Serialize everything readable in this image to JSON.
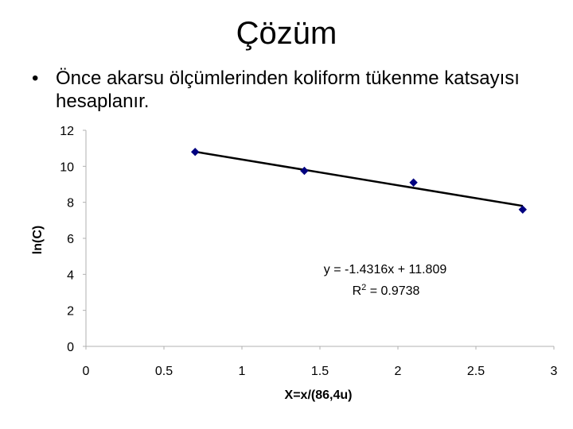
{
  "slide": {
    "title": "Çözüm",
    "bullet": "•",
    "text": "Önce akarsu ölçümlerinden koliform tükenme katsayısı hesaplanır."
  },
  "chart_data": {
    "type": "scatter",
    "xlabel": "X=x/(86,4u)",
    "ylabel": "ln(C)",
    "xlim": [
      0,
      3
    ],
    "ylim": [
      0,
      12
    ],
    "x_ticks": [
      0,
      0.5,
      1,
      1.5,
      2,
      2.5,
      3
    ],
    "x_tick_labels": [
      "0",
      "0.5",
      "1",
      "1.5",
      "2",
      "2.5",
      "3"
    ],
    "y_ticks": [
      0,
      2,
      4,
      6,
      8,
      10,
      12
    ],
    "y_tick_labels": [
      "0",
      "2",
      "4",
      "6",
      "8",
      "10",
      "12"
    ],
    "grid": false,
    "series": [
      {
        "x": [
          0.7,
          1.4,
          2.1,
          2.8
        ],
        "y": [
          10.8,
          9.75,
          9.1,
          7.6
        ],
        "color": "#000080"
      }
    ],
    "trendline": {
      "slope": -1.4316,
      "intercept": 11.809,
      "x_range": [
        0.7,
        2.8
      ],
      "color": "#000000"
    },
    "annotation": {
      "equation": "y = -1.4316x + 11.809",
      "r2_prefix": "R",
      "r2_sup": "2",
      "r2_value": " = 0.9738"
    }
  }
}
